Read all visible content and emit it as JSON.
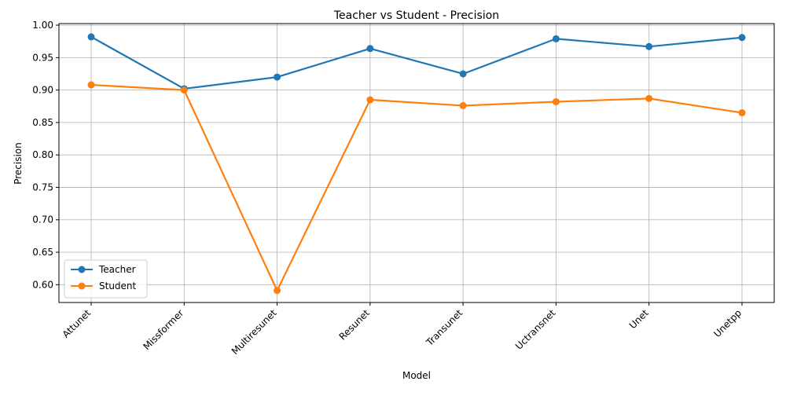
{
  "chart_data": {
    "type": "line",
    "title": "Teacher vs Student - Precision",
    "xlabel": "Model",
    "ylabel": "Precision",
    "categories": [
      "Attunet",
      "Missformer",
      "Multiresunet",
      "Resunet",
      "Transunet",
      "Uctransnet",
      "Unet",
      "Unetpp"
    ],
    "ylim": [
      0.5725,
      1.0025
    ],
    "yticks": [
      "0.60",
      "0.65",
      "0.70",
      "0.75",
      "0.80",
      "0.85",
      "0.90",
      "0.95",
      "1.00"
    ],
    "grid": true,
    "legend_position": "lower-left",
    "series": [
      {
        "name": "Teacher",
        "color": "#1f77b4",
        "values": [
          0.982,
          0.902,
          0.92,
          0.964,
          0.925,
          0.979,
          0.967,
          0.981
        ]
      },
      {
        "name": "Student",
        "color": "#ff7f0e",
        "values": [
          0.908,
          0.9,
          0.591,
          0.885,
          0.876,
          0.882,
          0.887,
          0.865
        ]
      }
    ]
  }
}
